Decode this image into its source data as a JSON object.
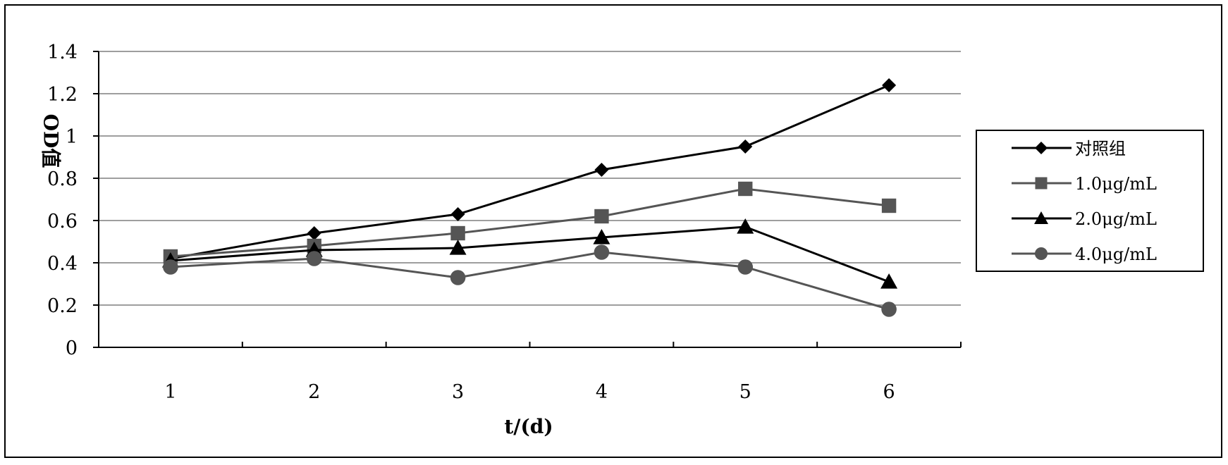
{
  "chart_data": {
    "type": "line",
    "title": "",
    "xlabel": "t/(d)",
    "ylabel": "OD值",
    "categories": [
      "1",
      "2",
      "3",
      "4",
      "5",
      "6"
    ],
    "ylim": [
      0,
      1.4
    ],
    "yticks": [
      "0",
      "0.2",
      "0.4",
      "0.6",
      "0.8",
      "1",
      "1.2",
      "1.4"
    ],
    "grid": "horizontal",
    "legend_position": "right",
    "series": [
      {
        "name": "对照组",
        "marker": "diamond",
        "color": "#000000",
        "values": [
          0.42,
          0.54,
          0.63,
          0.84,
          0.95,
          1.24
        ]
      },
      {
        "name": "1.0μg/mL",
        "marker": "square",
        "color": "#555555",
        "values": [
          0.43,
          0.48,
          0.54,
          0.62,
          0.75,
          0.67
        ]
      },
      {
        "name": "2.0μg/mL",
        "marker": "triangle",
        "color": "#000000",
        "values": [
          0.41,
          0.46,
          0.47,
          0.52,
          0.57,
          0.31
        ]
      },
      {
        "name": "4.0μg/mL",
        "marker": "circle",
        "color": "#555555",
        "values": [
          0.38,
          0.42,
          0.33,
          0.45,
          0.38,
          0.18
        ]
      }
    ]
  }
}
